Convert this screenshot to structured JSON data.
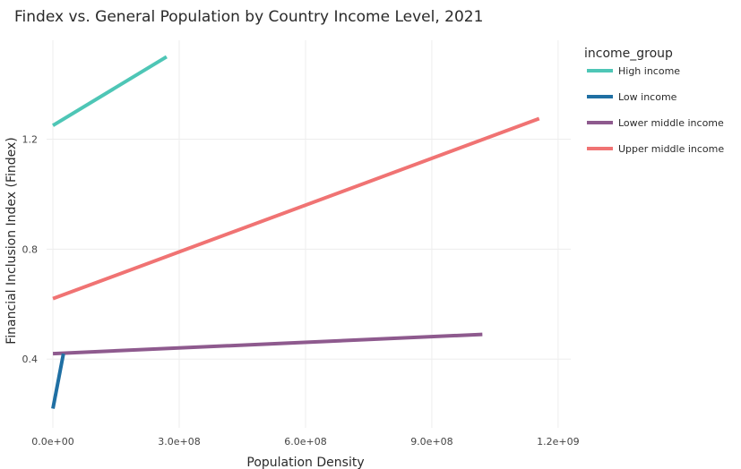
{
  "chart_data": {
    "type": "line",
    "title": "Findex vs. General Population by Country Income Level, 2021",
    "xlabel": "Population Density",
    "ylabel": "Financial Inclusion Index (Findex)",
    "xlim": [
      -15000000,
      1230000000
    ],
    "ylim": [
      0.15,
      1.56
    ],
    "x_ticks": [
      0,
      300000000,
      600000000,
      900000000,
      1200000000
    ],
    "x_tick_labels": [
      "0.0e+00",
      "3.0e+08",
      "6.0e+08",
      "9.0e+08",
      "1.2e+09"
    ],
    "y_ticks": [
      0.4,
      0.8,
      1.2
    ],
    "y_tick_labels": [
      "0.4",
      "0.8",
      "1.2"
    ],
    "grid": true,
    "legend_title": "income_group",
    "legend_position": "right",
    "series": [
      {
        "name": "High income",
        "color": "#4ec6b6",
        "x": [
          0,
          270000000
        ],
        "y": [
          1.25,
          1.5
        ]
      },
      {
        "name": "Low income",
        "color": "#1f6fa3",
        "x": [
          0,
          25000000
        ],
        "y": [
          0.22,
          0.42
        ]
      },
      {
        "name": "Lower middle income",
        "color": "#8e5a8e",
        "x": [
          0,
          1020000000
        ],
        "y": [
          0.42,
          0.49
        ]
      },
      {
        "name": "Upper middle income",
        "color": "#f07373",
        "x": [
          0,
          1155000000
        ],
        "y": [
          0.62,
          1.275
        ]
      }
    ]
  }
}
